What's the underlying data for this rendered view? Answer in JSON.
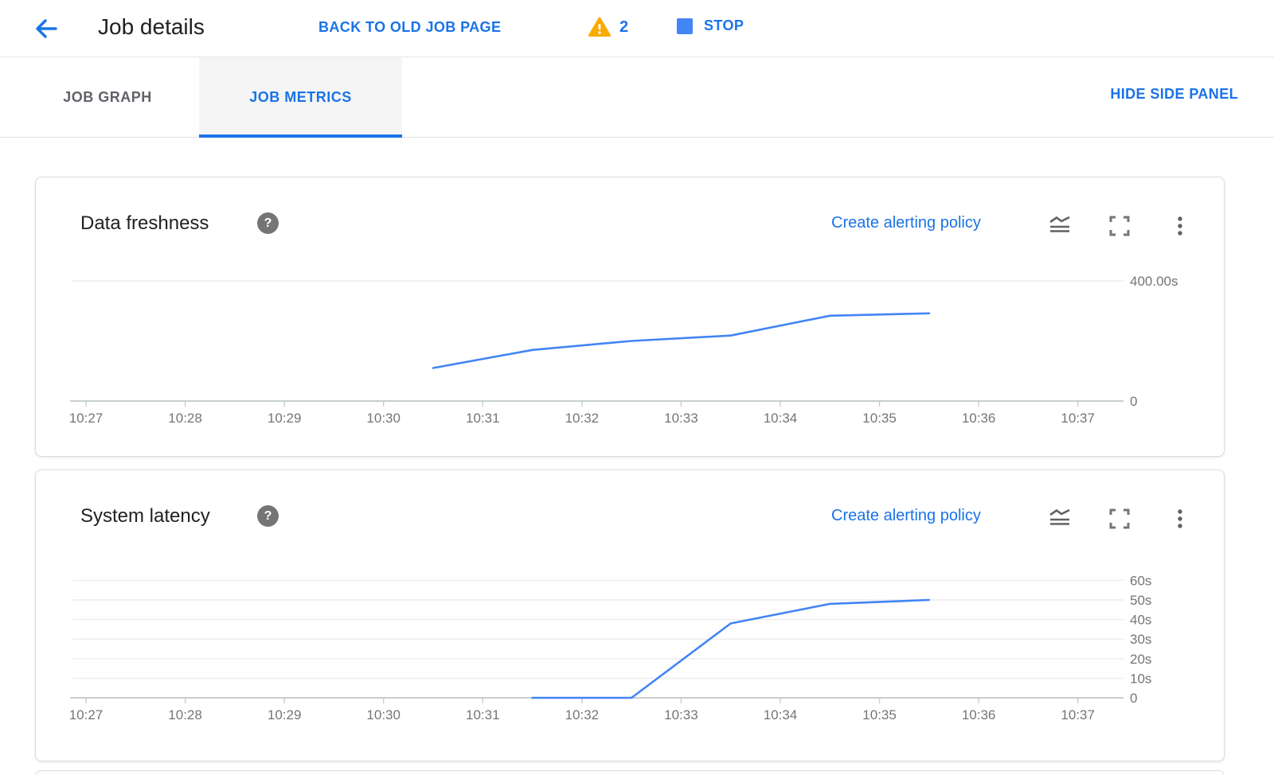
{
  "header": {
    "title": "Job details",
    "back_to_old_job_page": "BACK TO OLD JOB PAGE",
    "warning_count": "2",
    "stop_label": "STOP"
  },
  "tab_bar": {
    "tabs": [
      {
        "label": "JOB GRAPH",
        "active": false
      },
      {
        "label": "JOB METRICS",
        "active": true
      }
    ],
    "hide_side_panel": "HIDE SIDE PANEL"
  },
  "cards": [
    {
      "title": "Data freshness",
      "action_link": "Create alerting policy"
    },
    {
      "title": "System latency",
      "action_link": "Create alerting policy"
    }
  ],
  "icons": [
    "back-arrow-icon",
    "warning-triangle-icon",
    "stop-square-icon",
    "help-question-icon",
    "area-chart-icon",
    "fullscreen-icon",
    "kebab-menu-icon"
  ],
  "colors": {
    "accent_blue": "#1a73e8",
    "chart_line_blue": "#4285f4",
    "warning_orange": "#f9ab00",
    "axis_text_gray": "#757575",
    "gridline_gray": "#ececec",
    "baseline_gray": "#c8cdd1",
    "icon_gray": "#616161"
  },
  "chart_data": [
    {
      "type": "line",
      "title": "Data freshness",
      "unit": "seconds",
      "grid": "horizontal-only",
      "legend": "none",
      "ylim": [
        0,
        460
      ],
      "x_tick_labels": [
        "10:27",
        "10:28",
        "10:29",
        "10:30",
        "10:31",
        "10:32",
        "10:33",
        "10:34",
        "10:35",
        "10:36",
        "10:37"
      ],
      "y_axis_labels": [
        {
          "value": 400,
          "label": "400.00s"
        },
        {
          "value": 0,
          "label": "0"
        }
      ],
      "y_gridlines": [
        400
      ],
      "line_color": "#4285f4",
      "series": [
        {
          "name": "Data freshness",
          "points": [
            {
              "time": "10:30:30",
              "minutes_from_start": 3.5,
              "seconds": 110
            },
            {
              "time": "10:31:30",
              "minutes_from_start": 4.5,
              "seconds": 170
            },
            {
              "time": "10:32:30",
              "minutes_from_start": 5.5,
              "seconds": 200
            },
            {
              "time": "10:33:30",
              "minutes_from_start": 6.5,
              "seconds": 218
            },
            {
              "time": "10:34:30",
              "minutes_from_start": 7.5,
              "seconds": 284
            },
            {
              "time": "10:35:30",
              "minutes_from_start": 8.5,
              "seconds": 292
            }
          ]
        }
      ]
    },
    {
      "type": "line",
      "title": "System latency",
      "unit": "seconds",
      "grid": "horizontal-only",
      "legend": "none",
      "ylim": [
        0,
        72
      ],
      "x_tick_labels": [
        "10:27",
        "10:28",
        "10:29",
        "10:30",
        "10:31",
        "10:32",
        "10:33",
        "10:34",
        "10:35",
        "10:36",
        "10:37"
      ],
      "y_axis_labels": [
        {
          "value": 60,
          "label": "60s"
        },
        {
          "value": 50,
          "label": "50s"
        },
        {
          "value": 40,
          "label": "40s"
        },
        {
          "value": 30,
          "label": "30s"
        },
        {
          "value": 20,
          "label": "20s"
        },
        {
          "value": 10,
          "label": "10s"
        },
        {
          "value": 0,
          "label": "0"
        }
      ],
      "y_gridlines": [
        10,
        20,
        30,
        40,
        50,
        60
      ],
      "line_color": "#4285f4",
      "series": [
        {
          "name": "System latency",
          "points": [
            {
              "time": "10:31:30",
              "minutes_from_start": 4.5,
              "seconds": 0
            },
            {
              "time": "10:32:30",
              "minutes_from_start": 5.5,
              "seconds": 0
            },
            {
              "time": "10:33:30",
              "minutes_from_start": 6.5,
              "seconds": 38
            },
            {
              "time": "10:34:30",
              "minutes_from_start": 7.5,
              "seconds": 48
            },
            {
              "time": "10:35:30",
              "minutes_from_start": 8.5,
              "seconds": 50
            }
          ]
        }
      ]
    }
  ]
}
